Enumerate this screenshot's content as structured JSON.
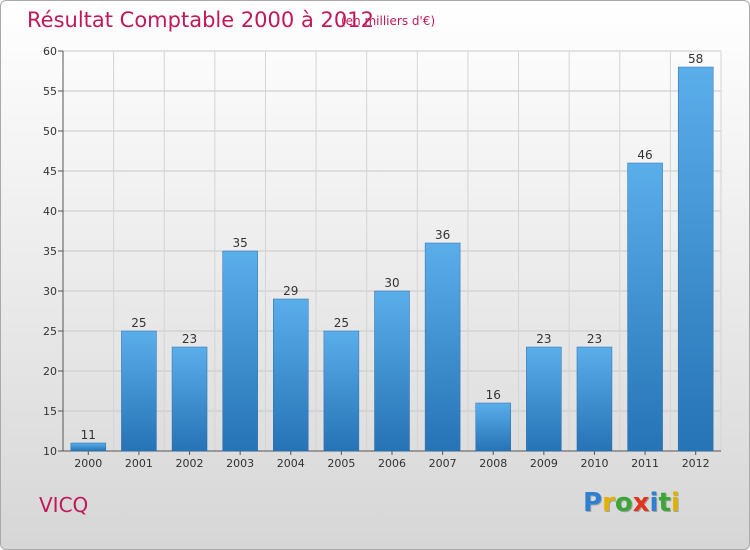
{
  "header": {
    "title": "Résultat Comptable 2000 à 2012",
    "subtitle": "(en milliers d'€)"
  },
  "footer": {
    "commune": "VICQ",
    "logo_text": "Proxiti"
  },
  "colors": {
    "title": "#c2185b",
    "bar_top": "#5aaeea",
    "bar_bottom": "#2673b5",
    "logo_letters": [
      "#2f7fd0",
      "#e2b100",
      "#3aa635",
      "#e0341c",
      "#2f7fd0",
      "#3aa635",
      "#e2b100"
    ]
  },
  "chart_data": {
    "type": "bar",
    "categories": [
      "2000",
      "2001",
      "2002",
      "2003",
      "2004",
      "2005",
      "2006",
      "2007",
      "2008",
      "2009",
      "2010",
      "2011",
      "2012"
    ],
    "values": [
      11,
      25,
      23,
      35,
      29,
      25,
      30,
      36,
      16,
      23,
      23,
      46,
      58
    ],
    "ylim": [
      10,
      60
    ],
    "yticks": [
      10,
      15,
      20,
      25,
      30,
      35,
      40,
      45,
      50,
      55,
      60
    ],
    "grid": true
  }
}
